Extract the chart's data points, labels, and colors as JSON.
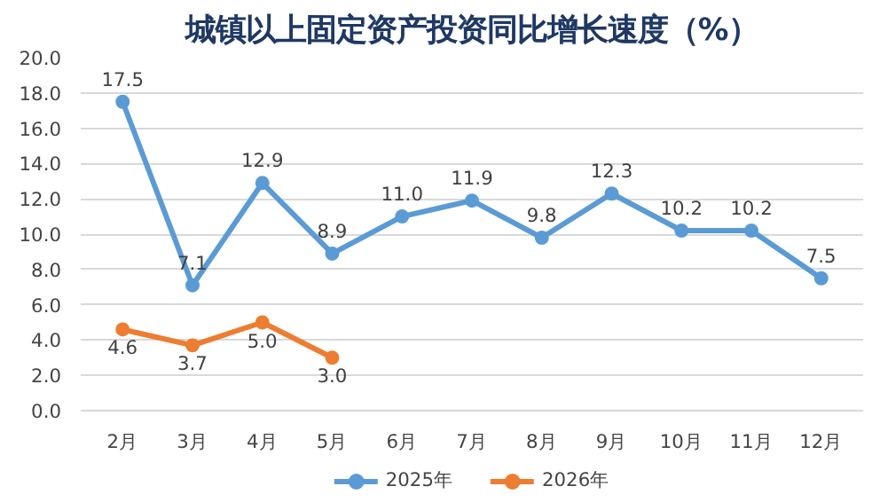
{
  "chart_data": {
    "type": "line",
    "title": "城镇以上固定资产投资同比增长速度（%）",
    "categories": [
      "2月",
      "3月",
      "4月",
      "5月",
      "6月",
      "7月",
      "8月",
      "9月",
      "10月",
      "11月",
      "12月"
    ],
    "series": [
      {
        "name": "2025年",
        "color": "#5b9bd5",
        "values": [
          17.5,
          7.1,
          12.9,
          8.9,
          11.0,
          11.9,
          9.8,
          12.3,
          10.2,
          10.2,
          7.5
        ],
        "value_labels": [
          "17.5",
          "7.1",
          "12.9",
          "8.9",
          "11.0",
          "11.9",
          "9.8",
          "12.3",
          "10.2",
          "10.2",
          "7.5"
        ]
      },
      {
        "name": "2026年",
        "color": "#ed7d31",
        "values": [
          4.6,
          3.7,
          5.0,
          3.0,
          null,
          null,
          null,
          null,
          null,
          null,
          null
        ],
        "value_labels": [
          "4.6",
          "3.7",
          "5.0",
          "3.0",
          null,
          null,
          null,
          null,
          null,
          null,
          null
        ]
      }
    ],
    "ylim": [
      0,
      20
    ],
    "yticks": [
      {
        "value": 0,
        "label": "0.0"
      },
      {
        "value": 2,
        "label": "2.0"
      },
      {
        "value": 4,
        "label": "4.0"
      },
      {
        "value": 6,
        "label": "6.0"
      },
      {
        "value": 8,
        "label": "8.0"
      },
      {
        "value": 10,
        "label": "10.0"
      },
      {
        "value": 12,
        "label": "12.0"
      },
      {
        "value": 14,
        "label": "14.0"
      },
      {
        "value": 16,
        "label": "16.0"
      },
      {
        "value": 18,
        "label": "18.0"
      },
      {
        "value": 20,
        "label": "20.0"
      }
    ],
    "grid": "y",
    "legend": "bottom",
    "marker": "circle",
    "line_style": "solid"
  }
}
